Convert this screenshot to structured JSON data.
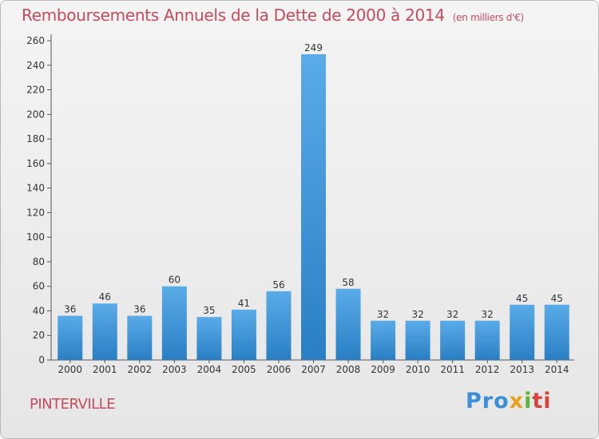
{
  "title": "Remboursements Annuels de la Dette de 2000 à 2014",
  "title_unit": "(en milliers d'€)",
  "commune": "PINTERVILLE",
  "logo": [
    "Pro",
    "x",
    "i",
    "ti"
  ],
  "colors": {
    "title": "#c84a5d",
    "bar_light": "#5aabe8",
    "bar_dark": "#2a7fc4",
    "logo_blue": "#3a8fd6",
    "logo_orange": "#e8a21c",
    "logo_green": "#5cb531",
    "logo_red": "#d8443c"
  },
  "chart_data": {
    "type": "bar",
    "categories": [
      "2000",
      "2001",
      "2002",
      "2003",
      "2004",
      "2005",
      "2006",
      "2007",
      "2008",
      "2009",
      "2010",
      "2011",
      "2012",
      "2013",
      "2014"
    ],
    "values": [
      36,
      46,
      36,
      60,
      35,
      41,
      56,
      249,
      58,
      32,
      32,
      32,
      32,
      45,
      45
    ],
    "yticks": [
      0,
      20,
      40,
      60,
      80,
      100,
      120,
      140,
      160,
      180,
      200,
      220,
      240,
      260
    ],
    "ylim": [
      0,
      260
    ],
    "grid": false,
    "data_labels": true
  }
}
